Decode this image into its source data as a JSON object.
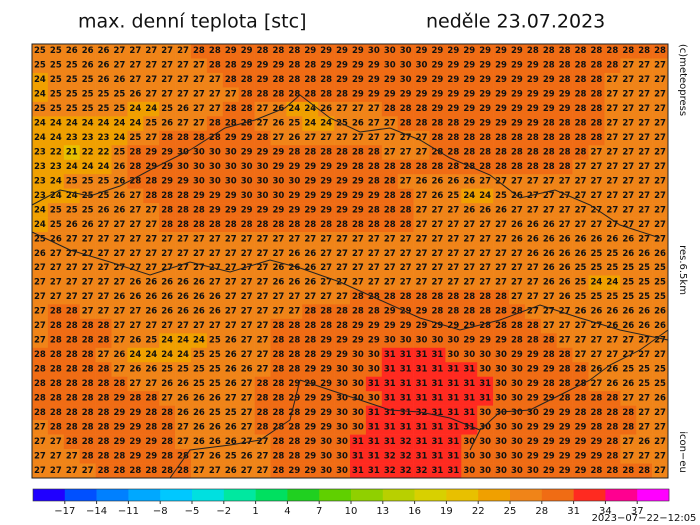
{
  "header": {
    "title": "max. denní teplota [stc]",
    "date": "neděle 23.07.2023"
  },
  "side_labels": [
    "(c)meteopress",
    "res.6.5km",
    "icon−eu"
  ],
  "timestamp": "2023−07−22−12:05",
  "grid": {
    "values": [
      [
        25,
        25,
        26,
        26,
        26,
        27,
        27,
        27,
        27,
        27,
        28,
        28,
        29,
        29,
        28,
        28,
        28,
        29,
        29,
        29,
        29,
        30,
        30,
        30,
        29,
        29,
        29,
        29,
        29,
        29,
        29,
        28,
        28,
        28,
        28,
        28,
        28,
        28,
        28,
        28
      ],
      [
        25,
        25,
        25,
        26,
        26,
        27,
        27,
        27,
        27,
        27,
        27,
        28,
        28,
        29,
        29,
        29,
        28,
        28,
        29,
        29,
        29,
        29,
        30,
        30,
        30,
        29,
        29,
        29,
        29,
        29,
        29,
        29,
        28,
        28,
        28,
        28,
        28,
        27,
        27,
        27
      ],
      [
        24,
        25,
        25,
        25,
        26,
        26,
        27,
        27,
        27,
        27,
        27,
        27,
        28,
        28,
        29,
        28,
        28,
        28,
        28,
        29,
        29,
        29,
        29,
        30,
        29,
        29,
        29,
        29,
        29,
        29,
        29,
        29,
        29,
        28,
        28,
        28,
        27,
        27,
        27,
        27
      ],
      [
        24,
        25,
        25,
        25,
        25,
        25,
        26,
        27,
        27,
        27,
        27,
        27,
        27,
        28,
        28,
        28,
        28,
        28,
        28,
        28,
        29,
        29,
        29,
        29,
        29,
        29,
        29,
        29,
        29,
        29,
        29,
        29,
        29,
        29,
        28,
        28,
        27,
        27,
        27,
        27
      ],
      [
        25,
        25,
        25,
        25,
        25,
        25,
        24,
        24,
        25,
        26,
        27,
        27,
        28,
        28,
        27,
        26,
        24,
        24,
        26,
        27,
        27,
        27,
        28,
        28,
        28,
        29,
        29,
        29,
        29,
        29,
        29,
        29,
        29,
        29,
        28,
        28,
        27,
        27,
        27,
        27
      ],
      [
        24,
        24,
        24,
        24,
        24,
        24,
        24,
        25,
        26,
        27,
        27,
        28,
        28,
        28,
        27,
        26,
        25,
        24,
        24,
        25,
        26,
        27,
        27,
        28,
        28,
        28,
        28,
        29,
        29,
        29,
        29,
        29,
        28,
        28,
        28,
        28,
        27,
        27,
        27,
        27
      ],
      [
        24,
        24,
        23,
        23,
        23,
        24,
        25,
        27,
        28,
        28,
        28,
        28,
        29,
        29,
        28,
        27,
        26,
        27,
        27,
        27,
        27,
        27,
        27,
        27,
        27,
        28,
        28,
        28,
        28,
        28,
        28,
        28,
        28,
        28,
        28,
        28,
        27,
        27,
        27,
        27
      ],
      [
        23,
        22,
        21,
        22,
        22,
        25,
        28,
        29,
        29,
        30,
        30,
        30,
        30,
        29,
        29,
        29,
        28,
        28,
        28,
        28,
        28,
        28,
        27,
        27,
        27,
        28,
        28,
        28,
        28,
        28,
        28,
        28,
        28,
        28,
        28,
        27,
        27,
        27,
        27,
        27
      ],
      [
        23,
        23,
        24,
        24,
        24,
        26,
        28,
        29,
        29,
        30,
        30,
        30,
        30,
        30,
        30,
        29,
        29,
        29,
        29,
        29,
        28,
        28,
        28,
        28,
        28,
        28,
        28,
        28,
        28,
        28,
        28,
        28,
        28,
        28,
        27,
        27,
        27,
        27,
        27,
        27
      ],
      [
        23,
        24,
        25,
        25,
        25,
        26,
        28,
        28,
        29,
        29,
        30,
        30,
        30,
        30,
        30,
        30,
        30,
        29,
        29,
        29,
        29,
        28,
        28,
        27,
        26,
        26,
        26,
        26,
        27,
        27,
        27,
        27,
        27,
        27,
        27,
        27,
        27,
        27,
        27,
        27
      ],
      [
        23,
        24,
        24,
        25,
        25,
        26,
        27,
        28,
        28,
        28,
        29,
        29,
        29,
        30,
        30,
        30,
        29,
        29,
        29,
        29,
        29,
        29,
        28,
        28,
        27,
        26,
        25,
        24,
        24,
        25,
        26,
        27,
        27,
        27,
        27,
        27,
        27,
        27,
        27,
        27
      ],
      [
        24,
        25,
        25,
        25,
        26,
        26,
        27,
        27,
        28,
        28,
        28,
        29,
        29,
        29,
        29,
        29,
        29,
        29,
        29,
        29,
        29,
        28,
        28,
        28,
        27,
        27,
        27,
        26,
        26,
        26,
        27,
        27,
        27,
        27,
        27,
        27,
        27,
        27,
        27,
        27
      ],
      [
        24,
        25,
        26,
        26,
        27,
        27,
        27,
        27,
        28,
        28,
        28,
        28,
        28,
        28,
        28,
        28,
        28,
        28,
        28,
        28,
        28,
        28,
        28,
        28,
        27,
        27,
        27,
        27,
        27,
        27,
        26,
        26,
        26,
        27,
        27,
        27,
        27,
        27,
        27,
        27
      ],
      [
        25,
        26,
        27,
        27,
        27,
        27,
        27,
        27,
        27,
        27,
        27,
        27,
        27,
        27,
        27,
        27,
        27,
        27,
        27,
        27,
        27,
        27,
        27,
        27,
        27,
        27,
        27,
        27,
        27,
        27,
        26,
        26,
        26,
        26,
        26,
        26,
        26,
        26,
        27,
        27
      ],
      [
        26,
        27,
        27,
        27,
        27,
        27,
        27,
        27,
        27,
        27,
        27,
        27,
        27,
        27,
        27,
        27,
        26,
        26,
        27,
        27,
        27,
        27,
        27,
        27,
        27,
        27,
        27,
        27,
        27,
        27,
        27,
        26,
        26,
        26,
        26,
        25,
        25,
        26,
        26,
        26
      ],
      [
        27,
        27,
        27,
        27,
        27,
        27,
        27,
        27,
        27,
        27,
        27,
        27,
        27,
        27,
        27,
        26,
        26,
        26,
        27,
        27,
        27,
        27,
        27,
        27,
        27,
        27,
        27,
        27,
        27,
        27,
        27,
        27,
        26,
        26,
        25,
        25,
        25,
        25,
        25,
        25
      ],
      [
        27,
        27,
        27,
        27,
        27,
        27,
        26,
        26,
        26,
        26,
        26,
        27,
        27,
        27,
        27,
        26,
        26,
        26,
        27,
        27,
        27,
        27,
        27,
        27,
        27,
        27,
        27,
        27,
        27,
        27,
        27,
        27,
        26,
        26,
        25,
        24,
        24,
        25,
        25,
        25
      ],
      [
        27,
        27,
        27,
        27,
        27,
        26,
        26,
        26,
        26,
        26,
        26,
        26,
        27,
        27,
        27,
        27,
        27,
        27,
        27,
        27,
        28,
        28,
        28,
        28,
        28,
        28,
        28,
        28,
        28,
        28,
        27,
        27,
        27,
        26,
        25,
        25,
        25,
        25,
        25,
        25
      ],
      [
        27,
        28,
        28,
        27,
        27,
        27,
        27,
        26,
        26,
        26,
        26,
        26,
        27,
        27,
        27,
        27,
        27,
        28,
        28,
        28,
        28,
        28,
        29,
        29,
        29,
        28,
        28,
        28,
        28,
        28,
        28,
        27,
        27,
        27,
        26,
        26,
        26,
        26,
        26,
        26
      ],
      [
        27,
        28,
        28,
        28,
        28,
        27,
        27,
        27,
        27,
        27,
        27,
        27,
        27,
        27,
        27,
        28,
        28,
        28,
        28,
        28,
        29,
        29,
        29,
        29,
        29,
        29,
        29,
        29,
        28,
        28,
        28,
        28,
        27,
        27,
        27,
        27,
        26,
        26,
        26,
        26
      ],
      [
        27,
        28,
        28,
        28,
        28,
        27,
        26,
        25,
        24,
        24,
        24,
        25,
        26,
        27,
        27,
        28,
        28,
        28,
        29,
        29,
        29,
        29,
        30,
        30,
        30,
        30,
        30,
        29,
        29,
        29,
        28,
        28,
        28,
        27,
        27,
        27,
        27,
        27,
        27,
        27
      ],
      [
        28,
        28,
        28,
        28,
        27,
        26,
        24,
        24,
        24,
        24,
        25,
        25,
        26,
        27,
        27,
        28,
        28,
        28,
        29,
        29,
        30,
        30,
        31,
        31,
        31,
        31,
        30,
        30,
        30,
        30,
        29,
        29,
        28,
        28,
        27,
        27,
        27,
        27,
        27,
        27
      ],
      [
        28,
        28,
        28,
        28,
        28,
        27,
        26,
        26,
        25,
        25,
        25,
        25,
        26,
        26,
        27,
        28,
        28,
        29,
        29,
        30,
        30,
        30,
        31,
        31,
        31,
        31,
        31,
        31,
        30,
        30,
        30,
        29,
        29,
        28,
        28,
        26,
        26,
        25,
        25,
        25
      ],
      [
        28,
        28,
        28,
        28,
        28,
        28,
        27,
        27,
        26,
        26,
        25,
        25,
        26,
        27,
        28,
        28,
        29,
        29,
        29,
        30,
        30,
        31,
        31,
        31,
        31,
        31,
        31,
        31,
        31,
        30,
        30,
        29,
        28,
        28,
        28,
        27,
        26,
        26,
        25,
        25
      ],
      [
        28,
        28,
        28,
        28,
        28,
        29,
        28,
        28,
        27,
        26,
        26,
        26,
        27,
        27,
        28,
        28,
        29,
        29,
        29,
        30,
        30,
        30,
        31,
        31,
        31,
        31,
        31,
        31,
        31,
        30,
        30,
        29,
        29,
        28,
        28,
        28,
        28,
        27,
        27,
        26
      ],
      [
        28,
        28,
        28,
        28,
        28,
        29,
        29,
        28,
        28,
        26,
        26,
        25,
        25,
        27,
        28,
        28,
        28,
        29,
        29,
        30,
        30,
        31,
        31,
        31,
        32,
        31,
        31,
        31,
        30,
        30,
        30,
        30,
        29,
        29,
        28,
        28,
        28,
        28,
        27,
        27
      ],
      [
        27,
        28,
        28,
        28,
        28,
        29,
        29,
        28,
        28,
        27,
        26,
        26,
        26,
        27,
        28,
        28,
        28,
        29,
        29,
        30,
        30,
        31,
        31,
        31,
        31,
        31,
        31,
        31,
        30,
        30,
        30,
        29,
        29,
        29,
        29,
        28,
        28,
        28,
        27,
        27
      ],
      [
        27,
        27,
        28,
        28,
        28,
        29,
        29,
        29,
        28,
        27,
        26,
        26,
        26,
        27,
        27,
        28,
        28,
        29,
        30,
        30,
        31,
        31,
        31,
        32,
        31,
        31,
        31,
        30,
        30,
        30,
        30,
        29,
        29,
        29,
        29,
        29,
        28,
        27,
        26,
        27
      ],
      [
        27,
        27,
        27,
        28,
        28,
        28,
        29,
        29,
        28,
        28,
        27,
        26,
        25,
        26,
        27,
        28,
        28,
        29,
        30,
        30,
        31,
        31,
        32,
        32,
        31,
        31,
        31,
        30,
        30,
        30,
        30,
        29,
        29,
        29,
        29,
        29,
        28,
        27,
        27,
        27
      ],
      [
        27,
        27,
        27,
        27,
        28,
        28,
        28,
        28,
        28,
        28,
        27,
        27,
        26,
        27,
        27,
        28,
        29,
        29,
        30,
        30,
        31,
        31,
        32,
        32,
        32,
        31,
        31,
        30,
        30,
        30,
        30,
        30,
        29,
        29,
        29,
        28,
        28,
        28,
        28,
        27
      ]
    ]
  },
  "colorbar": {
    "lim": [
      -20,
      40
    ],
    "colors": [
      "#2000ff",
      "#0050ff",
      "#0080ff",
      "#00a8ff",
      "#00c8ff",
      "#00e0e0",
      "#00e8a0",
      "#00e060",
      "#20d020",
      "#60d000",
      "#90d000",
      "#b8d000",
      "#d8d000",
      "#e8c000",
      "#f0a000",
      "#f08418",
      "#f06c14",
      "#ff2a20",
      "#ff0090",
      "#ff00ff"
    ],
    "ticks": [
      {
        "value": -17,
        "label": "−17"
      },
      {
        "value": -14,
        "label": "−14"
      },
      {
        "value": -11,
        "label": "−11"
      },
      {
        "value": -8,
        "label": "−8"
      },
      {
        "value": -5,
        "label": "−5"
      },
      {
        "value": -2,
        "label": "−2"
      },
      1,
      4,
      7,
      10,
      13,
      16,
      19,
      22,
      25,
      28,
      31,
      34,
      37
    ]
  }
}
